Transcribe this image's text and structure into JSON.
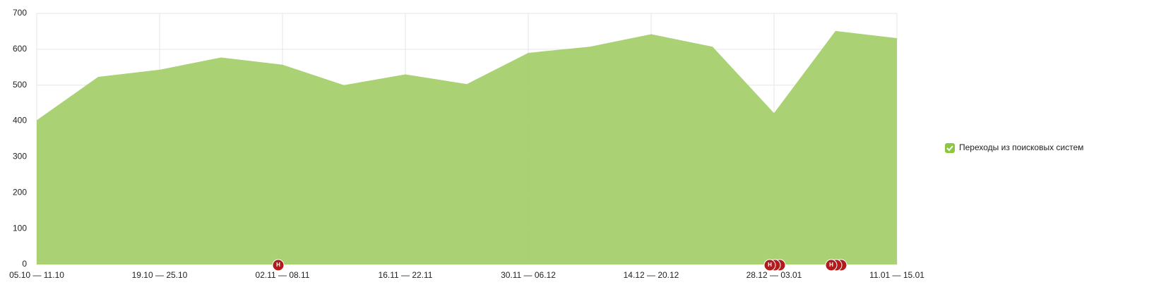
{
  "chart_data": {
    "type": "area",
    "categories": [
      "05.10 — 11.10",
      null,
      "19.10 — 25.10",
      null,
      "02.11 — 08.11",
      null,
      "16.11 — 22.11",
      null,
      "30.11 — 06.12",
      null,
      "14.12 — 20.12",
      null,
      "28.12 — 03.01",
      null,
      "11.01 — 15.01"
    ],
    "series": [
      {
        "name": "Переходы из поисковых систем",
        "color": "#a5cf6c",
        "values": [
          402,
          523,
          543,
          577,
          557,
          500,
          530,
          503,
          590,
          607,
          642,
          607,
          422,
          651,
          631
        ]
      }
    ],
    "ylim": [
      0,
      700
    ],
    "yticks": [
      0,
      100,
      200,
      300,
      400,
      500,
      600,
      700
    ],
    "grid": true,
    "legend": "right",
    "markers": [
      "Н",
      "Н",
      "Н"
    ]
  }
}
